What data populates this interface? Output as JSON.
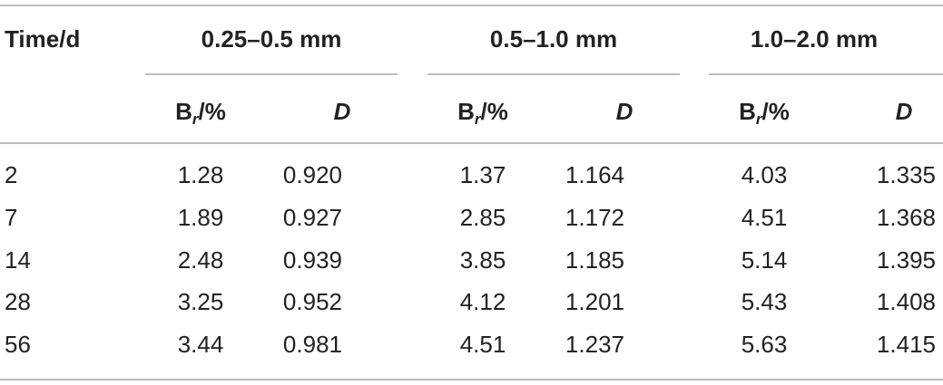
{
  "table": {
    "time_header": "Time/d",
    "groups": [
      "0.25–0.5 mm",
      "0.5–1.0 mm",
      "1.0–2.0 mm"
    ],
    "sub_headers": {
      "br_main": "B",
      "br_sub": "r",
      "br_unit": "/%",
      "d": "D"
    },
    "rows": [
      {
        "time": "2",
        "values": [
          "1.28",
          "0.920",
          "1.37",
          "1.164",
          "4.03",
          "1.335"
        ]
      },
      {
        "time": "7",
        "values": [
          "1.89",
          "0.927",
          "2.85",
          "1.172",
          "4.51",
          "1.368"
        ]
      },
      {
        "time": "14",
        "values": [
          "2.48",
          "0.939",
          "3.85",
          "1.185",
          "5.14",
          "1.395"
        ]
      },
      {
        "time": "28",
        "values": [
          "3.25",
          "0.952",
          "4.12",
          "1.201",
          "5.43",
          "1.408"
        ]
      },
      {
        "time": "56",
        "values": [
          "3.44",
          "0.981",
          "4.51",
          "1.237",
          "5.63",
          "1.415"
        ]
      }
    ]
  }
}
